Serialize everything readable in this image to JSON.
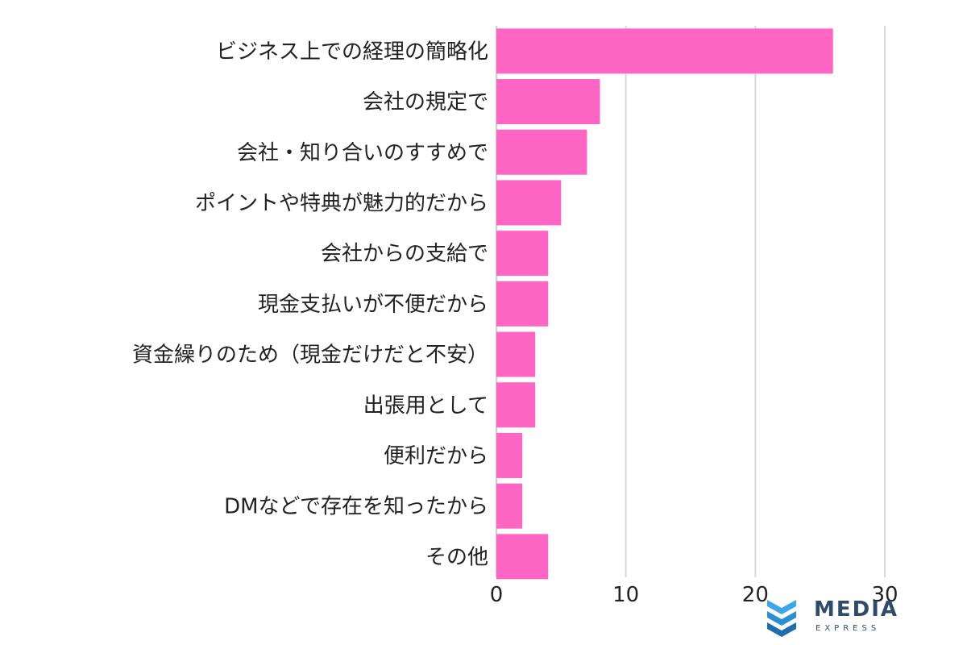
{
  "chart_data": {
    "type": "bar",
    "orientation": "horizontal",
    "categories": [
      "ビジネス上での経理の簡略化",
      "会社の規定で",
      "会社・知り合いのすすめで",
      "ポイントや特典が魅力的だから",
      "会社からの支給で",
      "現金支払いが不便だから",
      "資金繰りのため（現金だけだと不安）",
      "出張用として",
      "便利だから",
      "DMなどで存在を知ったから",
      "その他"
    ],
    "values": [
      26,
      8,
      7,
      5,
      4,
      4,
      3,
      3,
      2,
      2,
      4
    ],
    "xlim": [
      0,
      30
    ],
    "ticks": [
      "0",
      "10",
      "20",
      "30"
    ],
    "grid": true,
    "bar_color": "#ff66c4",
    "title": "",
    "xlabel": "",
    "ylabel": ""
  },
  "logo": {
    "name": "MEDIA",
    "sub": "EXPRESS",
    "colors": {
      "primary": "#2b8fd6",
      "text": "#2f4a6a"
    }
  }
}
